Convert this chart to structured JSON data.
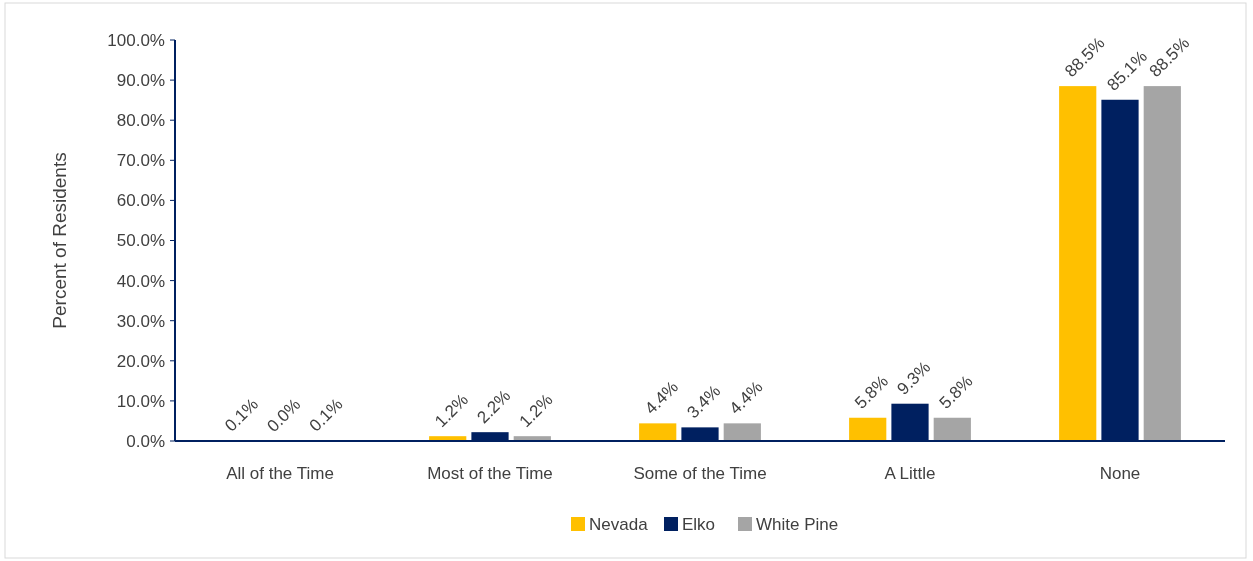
{
  "chart_data": {
    "type": "bar",
    "ylabel": "Percent of Residents",
    "categories": [
      "All of the Time",
      "Most of the Time",
      "Some of the Time",
      "A Little",
      "None"
    ],
    "series": [
      {
        "name": "Nevada",
        "color": "#ffc000",
        "values": [
          0.1,
          1.2,
          4.4,
          5.8,
          88.5
        ],
        "value_labels": [
          "0.1%",
          "1.2%",
          "4.4%",
          "5.8%",
          "88.5%"
        ]
      },
      {
        "name": "Elko",
        "color": "#002060",
        "values": [
          0.0,
          2.2,
          3.4,
          9.3,
          85.1
        ],
        "value_labels": [
          "0.0%",
          "2.2%",
          "3.4%",
          "9.3%",
          "85.1%"
        ]
      },
      {
        "name": "White Pine",
        "color": "#a5a5a5",
        "values": [
          0.1,
          1.2,
          4.4,
          5.8,
          88.5
        ],
        "value_labels": [
          "0.1%",
          "1.2%",
          "4.4%",
          "5.8%",
          "88.5%"
        ]
      }
    ],
    "ylim": [
      0,
      100
    ],
    "yticks": [
      {
        "value": 0,
        "label": "0.0%"
      },
      {
        "value": 10,
        "label": "10.0%"
      },
      {
        "value": 20,
        "label": "20.0%"
      },
      {
        "value": 30,
        "label": "30.0%"
      },
      {
        "value": 40,
        "label": "40.0%"
      },
      {
        "value": 50,
        "label": "50.0%"
      },
      {
        "value": 60,
        "label": "60.0%"
      },
      {
        "value": 70,
        "label": "70.0%"
      },
      {
        "value": 80,
        "label": "80.0%"
      },
      {
        "value": 90,
        "label": "90.0%"
      },
      {
        "value": 100,
        "label": "100.0%"
      }
    ],
    "legend": "bottom",
    "grid": false
  }
}
